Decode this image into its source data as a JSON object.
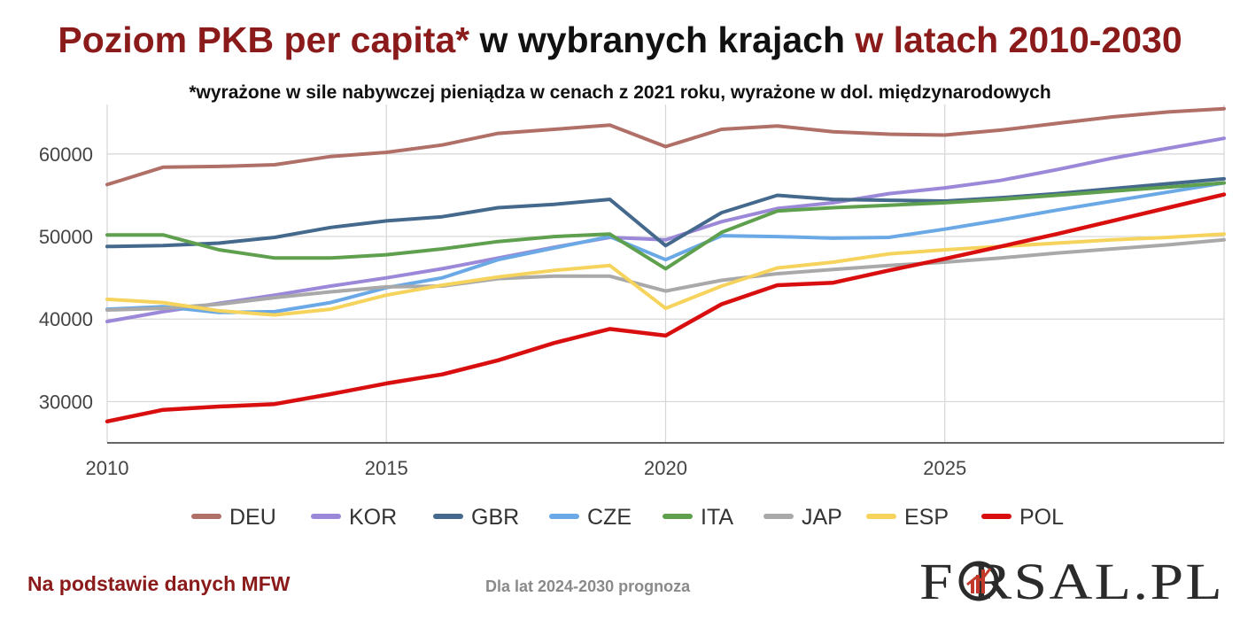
{
  "title": {
    "part1": "Poziom PKB per capita*",
    "part2": " w wybranych krajach ",
    "part3": "w latach 2010-2030"
  },
  "subtitle": "*wyrażone w sile nabywczej pieniądza w cenach z 2021 roku, wyrażone w dol. międzynarodowych",
  "source": "Na podstawie danych MFW",
  "forecast_note": "Dla lat 2024-2030 prognoza",
  "logo": {
    "text": "FORSAL.PL",
    "colors": {
      "letters": "#2b2b2b",
      "ring": "#c0392b"
    }
  },
  "chart_data": {
    "type": "line",
    "title": "Poziom PKB per capita* w wybranych krajach w latach 2010-2030",
    "xlabel": "",
    "ylabel": "",
    "xlim": [
      2010,
      2030
    ],
    "ylim": [
      25000,
      66000
    ],
    "x_ticks": [
      2010,
      2015,
      2020,
      2025
    ],
    "y_ticks": [
      30000,
      40000,
      50000,
      60000
    ],
    "grid": true,
    "legend_position": "bottom",
    "x": [
      2010,
      2011,
      2012,
      2013,
      2014,
      2015,
      2016,
      2017,
      2018,
      2019,
      2020,
      2021,
      2022,
      2023,
      2024,
      2025,
      2026,
      2027,
      2028,
      2029,
      2030
    ],
    "series": [
      {
        "name": "DEU",
        "color": "#B07068",
        "values": [
          56300,
          58400,
          58500,
          58700,
          59700,
          60200,
          61100,
          62500,
          63000,
          63500,
          60900,
          63000,
          63400,
          62700,
          62400,
          62300,
          62900,
          63700,
          64500,
          65100,
          65500
        ]
      },
      {
        "name": "KOR",
        "color": "#9B88D8",
        "values": [
          39700,
          40900,
          41900,
          42900,
          44000,
          45000,
          46100,
          47400,
          48700,
          49900,
          49600,
          51800,
          53400,
          54100,
          55200,
          55900,
          56800,
          58100,
          59500,
          60700,
          61900
        ]
      },
      {
        "name": "GBR",
        "color": "#44698C",
        "values": [
          48800,
          48900,
          49200,
          49900,
          51100,
          51900,
          52400,
          53500,
          53900,
          54500,
          48900,
          52900,
          55000,
          54500,
          54400,
          54300,
          54700,
          55200,
          55800,
          56400,
          57000
        ]
      },
      {
        "name": "CZE",
        "color": "#6AA9E5",
        "values": [
          41200,
          41500,
          40800,
          40900,
          42000,
          43800,
          45000,
          47200,
          48600,
          50000,
          47200,
          50100,
          50000,
          49800,
          49900,
          50900,
          52000,
          53200,
          54300,
          55400,
          56500
        ]
      },
      {
        "name": "ITA",
        "color": "#5FA04E",
        "values": [
          50200,
          50200,
          48400,
          47400,
          47400,
          47800,
          48500,
          49400,
          50000,
          50300,
          46100,
          50500,
          53100,
          53500,
          53800,
          54100,
          54500,
          55000,
          55500,
          56000,
          56500
        ]
      },
      {
        "name": "JAP",
        "color": "#A9A9A9",
        "values": [
          41100,
          41300,
          41800,
          42600,
          43300,
          43900,
          44000,
          44900,
          45200,
          45200,
          43400,
          44700,
          45500,
          46000,
          46500,
          46900,
          47400,
          48000,
          48500,
          49000,
          49600
        ]
      },
      {
        "name": "ESP",
        "color": "#F5D35C",
        "values": [
          42400,
          42000,
          41000,
          40500,
          41200,
          42900,
          44100,
          45100,
          45900,
          46500,
          41300,
          44000,
          46200,
          46900,
          47900,
          48400,
          48800,
          49200,
          49600,
          49900,
          50300
        ]
      },
      {
        "name": "POL",
        "color": "#D90F0F",
        "values": [
          27600,
          29000,
          29400,
          29700,
          30900,
          32200,
          33300,
          35000,
          37100,
          38800,
          38000,
          41800,
          44100,
          44400,
          45900,
          47300,
          48800,
          50300,
          51900,
          53500,
          55100
        ]
      }
    ]
  }
}
